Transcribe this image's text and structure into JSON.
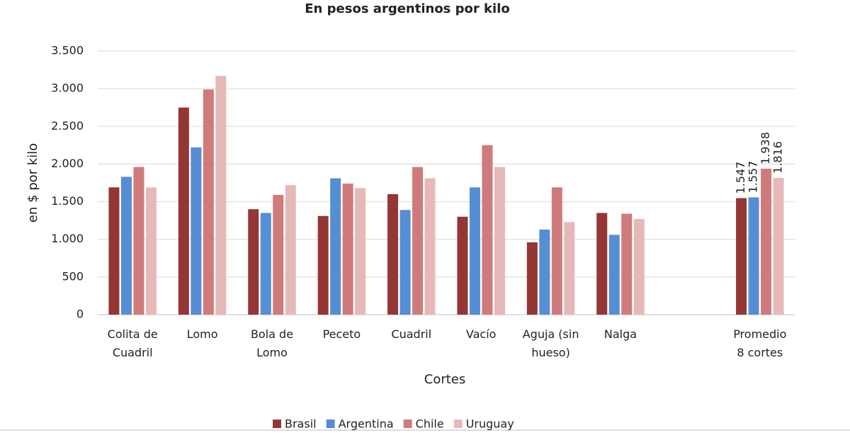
{
  "chart_data": {
    "type": "bar",
    "title": "En pesos argentinos por kilo",
    "x_label": "Cortes",
    "y_label": "en $ por kilo",
    "categories": [
      "Colita de Cuadril",
      "Lomo",
      "Bola de Lomo",
      "Peceto",
      "Cuadril",
      "Vacío",
      "Aguja (sin hueso)",
      "Nalga",
      null,
      "Promedio 8 cortes"
    ],
    "series": [
      {
        "name": "Brasil",
        "color": "#943634",
        "values": [
          1690,
          2750,
          1400,
          1310,
          1600,
          1300,
          960,
          1350,
          null,
          1547
        ],
        "value_labels": [
          null,
          null,
          null,
          null,
          null,
          null,
          null,
          null,
          null,
          "1.547"
        ]
      },
      {
        "name": "Argentina",
        "color": "#558ed5",
        "values": [
          1830,
          2220,
          1350,
          1810,
          1390,
          1690,
          1130,
          1060,
          null,
          1557
        ],
        "value_labels": [
          null,
          null,
          null,
          null,
          null,
          null,
          null,
          null,
          null,
          "1.557"
        ]
      },
      {
        "name": "Chile",
        "color": "#d07b7b",
        "values": [
          1960,
          2990,
          1590,
          1740,
          1960,
          2250,
          1690,
          1340,
          null,
          1938
        ],
        "value_labels": [
          null,
          null,
          null,
          null,
          null,
          null,
          null,
          null,
          null,
          "1.938"
        ]
      },
      {
        "name": "Uruguay",
        "color": "#e6b9b8",
        "values": [
          1690,
          3170,
          1720,
          1680,
          1810,
          1960,
          1230,
          1270,
          null,
          1816
        ],
        "value_labels": [
          null,
          null,
          null,
          null,
          null,
          null,
          null,
          null,
          null,
          "1.816"
        ]
      }
    ],
    "ylim": [
      0,
      3500
    ],
    "yticks": [
      0,
      500,
      {
        "value": 1000,
        "label": "1.000"
      },
      {
        "value": 1500,
        "label": "1.500"
      },
      {
        "value": 2000,
        "label": "2.000"
      },
      {
        "value": 2500,
        "label": "2.500"
      },
      {
        "value": 3000,
        "label": "3.000"
      },
      {
        "value": 3500,
        "label": "3.500"
      }
    ],
    "grid": true,
    "legend": "bottom"
  }
}
